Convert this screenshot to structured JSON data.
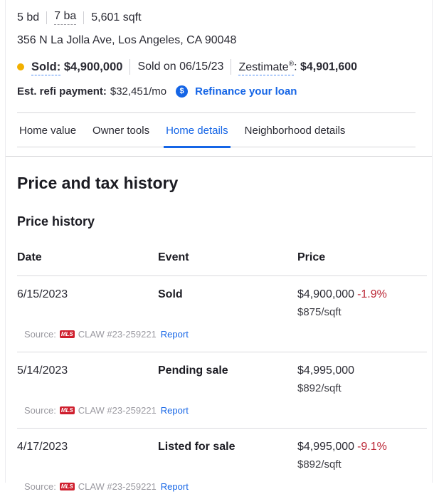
{
  "colors": {
    "accent_blue": "#1565e6",
    "negative_red": "#bb2635",
    "sold_dot_gold": "#f2b000",
    "mls_badge_red": "#cf1f2e"
  },
  "facts": {
    "beds": "5 bd",
    "baths": "7 ba",
    "sqft": "5,601 sqft"
  },
  "address": "356 N La Jolla Ave, Los Angeles, CA 90048",
  "status": {
    "sold_label": "Sold:",
    "sold_price": "$4,900,000",
    "sold_on": "Sold on 06/15/23",
    "zestimate_label": "Zestimate",
    "zestimate_sup": "®",
    "zestimate_colon": ":",
    "zestimate_value": "$4,901,600"
  },
  "refi": {
    "label": "Est. refi payment:",
    "value": "$32,451/mo",
    "icon_glyph": "$",
    "link_label": "Refinance your loan"
  },
  "tabs": [
    {
      "label": "Home value",
      "active": false
    },
    {
      "label": "Owner tools",
      "active": false
    },
    {
      "label": "Home details",
      "active": true
    },
    {
      "label": "Neighborhood details",
      "active": false
    }
  ],
  "section": {
    "title": "Price and tax history",
    "subtitle": "Price history"
  },
  "table": {
    "headers": [
      "Date",
      "Event",
      "Price"
    ],
    "rows": [
      {
        "date": "6/15/2023",
        "event": "Sold",
        "price": "$4,900,000",
        "change": "-1.9%",
        "per_sqft": "$875/sqft",
        "source_prefix": "Source:",
        "mls": "MLS",
        "source_id": "CLAW #23-259221",
        "report": "Report"
      },
      {
        "date": "5/14/2023",
        "event": "Pending sale",
        "price": "$4,995,000",
        "change": "",
        "per_sqft": "$892/sqft",
        "source_prefix": "Source:",
        "mls": "MLS",
        "source_id": "CLAW #23-259221",
        "report": "Report"
      },
      {
        "date": "4/17/2023",
        "event": "Listed for sale",
        "price": "$4,995,000",
        "change": "-9.1%",
        "per_sqft": "$892/sqft",
        "source_prefix": "Source:",
        "mls": "MLS",
        "source_id": "CLAW #23-259221",
        "report": "Report"
      }
    ]
  }
}
